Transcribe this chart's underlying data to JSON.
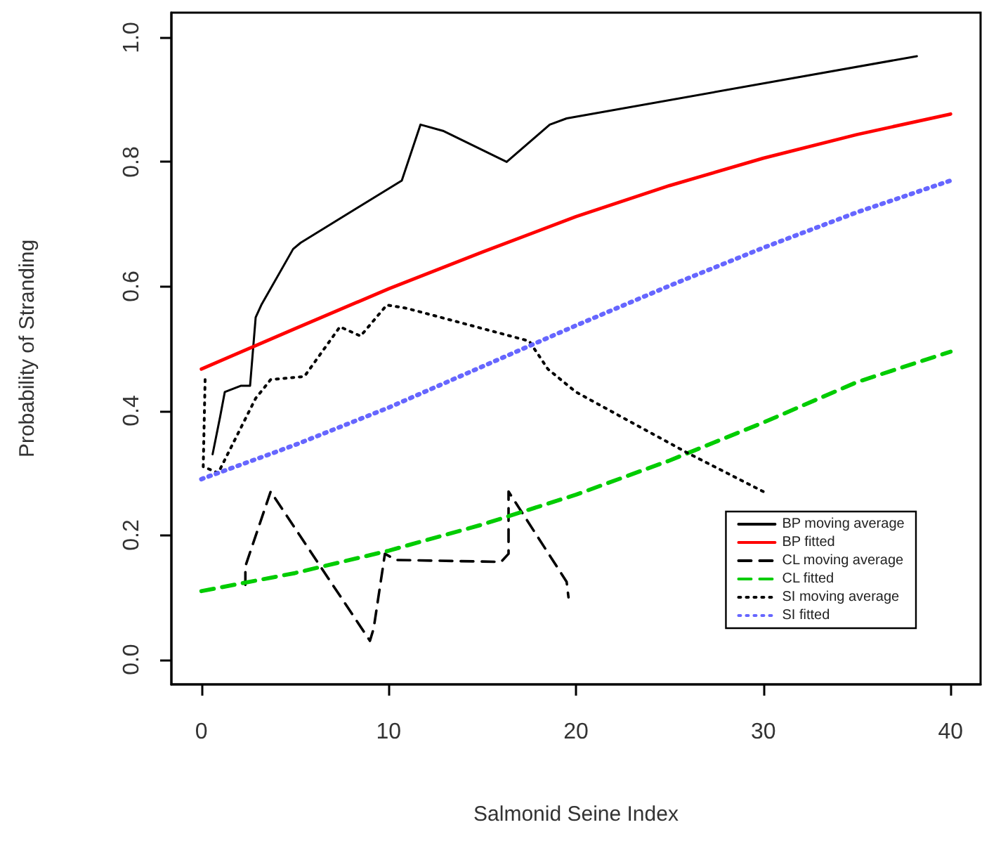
{
  "chart_data": {
    "type": "line",
    "xlabel": "Salmonid Seine Index",
    "ylabel": "Probability of Stranding",
    "xlim": [
      -1.6,
      41.6
    ],
    "ylim": [
      -0.04,
      1.04
    ],
    "xticks": [
      0,
      10,
      20,
      30,
      40
    ],
    "yticks": [
      {
        "value": 0,
        "label": "0.0"
      },
      0.2,
      0.4,
      0.6,
      0.8,
      {
        "value": 1,
        "label": "1.0"
      }
    ],
    "grid": false,
    "legend": "bottom right",
    "marker": "none",
    "series": [
      {
        "name": "BP moving average",
        "color": "#000000",
        "line_style": "solid",
        "x": [
          0.6,
          1.0,
          1.25,
          2.1,
          2.6,
          2.9,
          3.2,
          4.9,
          5.3,
          10.7,
          11.7,
          12.9,
          16.3,
          18.6,
          19.5,
          38.2
        ],
        "values": [
          0.33,
          0.39,
          0.43,
          0.44,
          0.44,
          0.55,
          0.57,
          0.66,
          0.67,
          0.77,
          0.86,
          0.85,
          0.8,
          0.86,
          0.87,
          0.97
        ]
      },
      {
        "name": "BP fitted",
        "color": "#ff0000",
        "line_style": "solid",
        "x": [
          0,
          5,
          10,
          15,
          20,
          25,
          30,
          35,
          40
        ],
        "values": [
          0.467,
          0.532,
          0.596,
          0.655,
          0.712,
          0.762,
          0.806,
          0.844,
          0.877
        ]
      },
      {
        "name": "CL moving average",
        "color": "#000000",
        "line_style": "dashed",
        "x": [
          2.35,
          2.35,
          3.7,
          9.0,
          9.2,
          9.8,
          10.4,
          16.0,
          16.4,
          16.4,
          19.5,
          19.6
        ],
        "values": [
          0.12,
          0.15,
          0.27,
          0.03,
          0.05,
          0.17,
          0.16,
          0.157,
          0.17,
          0.27,
          0.125,
          0.1
        ]
      },
      {
        "name": "CL fitted",
        "color": "#00cc00",
        "line_style": "dashed",
        "x": [
          0,
          5,
          10,
          15,
          20,
          25,
          30,
          35,
          40
        ],
        "values": [
          0.11,
          0.139,
          0.175,
          0.217,
          0.265,
          0.32,
          0.381,
          0.446,
          0.495
        ]
      },
      {
        "name": "SI moving average",
        "color": "#000000",
        "line_style": "dotted",
        "x": [
          0.2,
          0.1,
          0.9,
          2.9,
          3.7,
          5.5,
          7.4,
          8.5,
          9.9,
          10.9,
          11.8,
          17.5,
          18.5,
          20.0,
          25.9,
          30.0
        ],
        "values": [
          0.45,
          0.31,
          0.3,
          0.42,
          0.45,
          0.455,
          0.535,
          0.52,
          0.57,
          0.565,
          0.558,
          0.512,
          0.467,
          0.43,
          0.333,
          0.27
        ]
      },
      {
        "name": "SI fitted",
        "color": "#6666ff",
        "line_style": "dotted",
        "x": [
          0,
          5,
          10,
          15,
          20,
          25,
          30,
          35,
          40
        ],
        "values": [
          0.29,
          0.345,
          0.405,
          0.471,
          0.537,
          0.601,
          0.662,
          0.719,
          0.77
        ]
      }
    ]
  }
}
